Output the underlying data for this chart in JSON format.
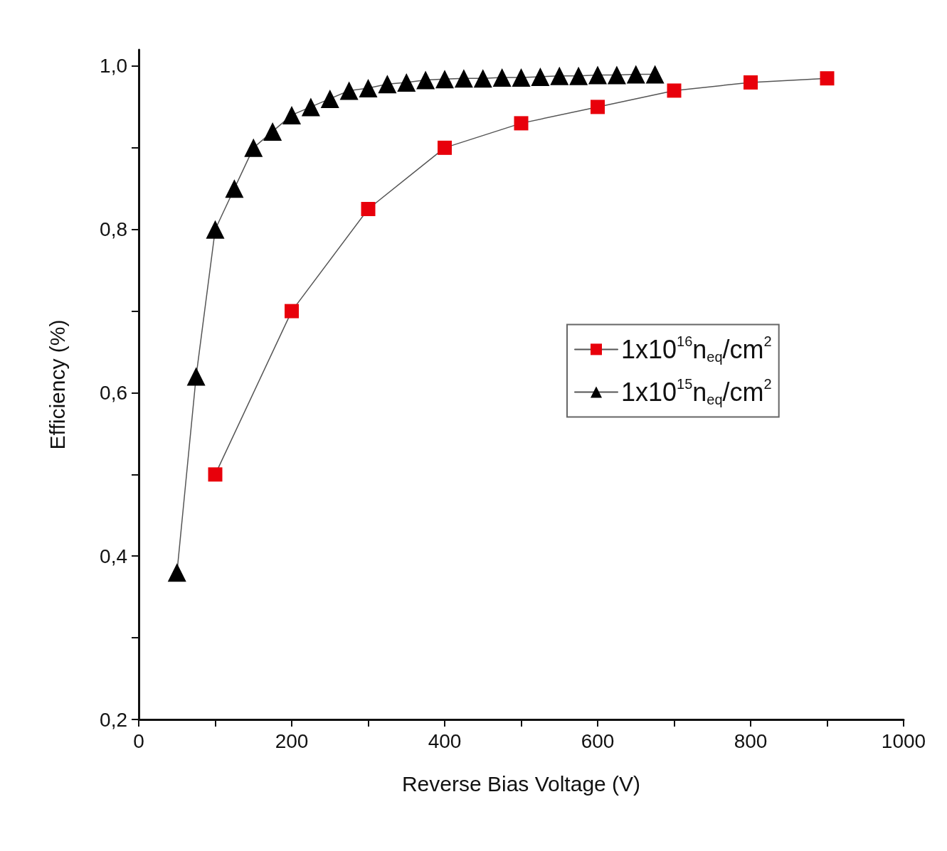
{
  "chart_data": {
    "type": "line",
    "xlabel": "Reverse Bias Voltage (V)",
    "ylabel": "Efficiency (%)",
    "xlim": [
      0,
      1000
    ],
    "xticks": [
      0,
      {
        "value": 100,
        "label": null
      },
      200,
      {
        "value": 300,
        "label": null
      },
      400,
      {
        "value": 500,
        "label": null
      },
      600,
      {
        "value": 700,
        "label": null
      },
      800,
      {
        "value": 900,
        "label": null
      },
      1000
    ],
    "ylim": [
      0.2,
      1.02
    ],
    "yticks": [
      {
        "value": 0.2,
        "label": "0,2"
      },
      {
        "value": 0.3,
        "label": null
      },
      {
        "value": 0.4,
        "label": "0,4"
      },
      {
        "value": 0.5,
        "label": null
      },
      {
        "value": 0.6,
        "label": "0,6"
      },
      {
        "value": 0.7,
        "label": null
      },
      {
        "value": 0.8,
        "label": "0,8"
      },
      {
        "value": 0.9,
        "label": null
      },
      {
        "value": 1.0,
        "label": "1,0"
      }
    ],
    "grid": false,
    "legend": "center",
    "line_style": "solid",
    "series": [
      {
        "name": "1x10$^{16}$n$_{eq}$/cm$^{2}$",
        "color": "#e8000b",
        "marker": "square",
        "x": [
          100,
          200,
          300,
          400,
          500,
          600,
          700,
          800,
          900
        ],
        "values": [
          0.5,
          0.7,
          0.825,
          0.9,
          0.93,
          0.95,
          0.97,
          0.98,
          0.985
        ]
      },
      {
        "name": "1x10$^{15}$n$_{eq}$/cm$^{2}$",
        "color": "#000000",
        "marker": "triangle",
        "x": [
          50,
          75,
          100,
          125,
          150,
          175,
          200,
          225,
          250,
          275,
          300,
          325,
          350,
          375,
          400,
          425,
          450,
          475,
          500,
          525,
          550,
          575,
          600,
          625,
          650,
          675
        ],
        "values": [
          0.38,
          0.62,
          0.8,
          0.85,
          0.9,
          0.92,
          0.94,
          0.95,
          0.96,
          0.97,
          0.973,
          0.978,
          0.98,
          0.983,
          0.984,
          0.985,
          0.985,
          0.986,
          0.986,
          0.987,
          0.988,
          0.988,
          0.989,
          0.989,
          0.99,
          0.99
        ]
      }
    ]
  }
}
